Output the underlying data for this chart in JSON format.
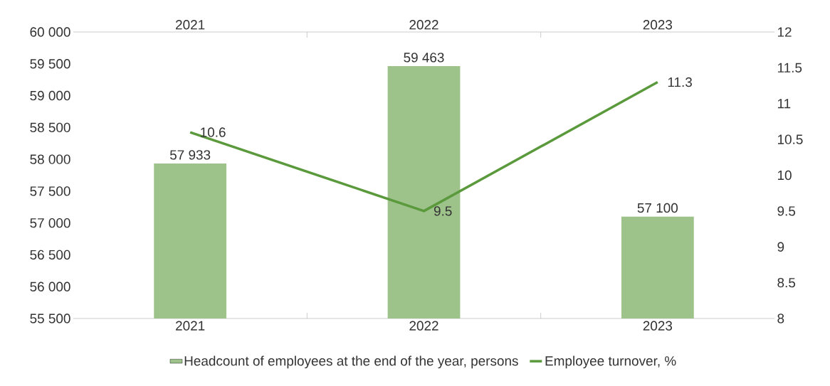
{
  "chart_data": {
    "type": "bar",
    "categories": [
      "2021",
      "2022",
      "2023"
    ],
    "series": [
      {
        "name": "Headcount of employees at the end of the year, persons",
        "color": "#9dc38b",
        "values": [
          57933,
          59463,
          57100
        ],
        "value_labels": [
          "57 933",
          "59 463",
          "57 100"
        ]
      },
      {
        "name": "Employee turnover, %",
        "type": "line",
        "axis": "y2",
        "color": "#5b9a3c",
        "values": [
          10.6,
          9.5,
          11.3
        ],
        "value_labels": [
          "10.6",
          "9.5",
          "11.3"
        ]
      }
    ],
    "ylim": [
      55500,
      60000
    ],
    "yticks": [
      {
        "value": 55500,
        "label": "55 500"
      },
      {
        "value": 56000,
        "label": "56 000"
      },
      {
        "value": 56500,
        "label": "56 500"
      },
      {
        "value": 57000,
        "label": "57 000"
      },
      {
        "value": 57500,
        "label": "57 500"
      },
      {
        "value": 58000,
        "label": "58 000"
      },
      {
        "value": 58500,
        "label": "58 500"
      },
      {
        "value": 59000,
        "label": "59 000"
      },
      {
        "value": 59500,
        "label": "59 500"
      },
      {
        "value": 60000,
        "label": "60 000"
      }
    ],
    "y2lim": [
      8,
      12
    ],
    "y2ticks": [
      8,
      8.5,
      9,
      9.5,
      10,
      10.5,
      11,
      11.5,
      12
    ],
    "legend": "bottom"
  }
}
